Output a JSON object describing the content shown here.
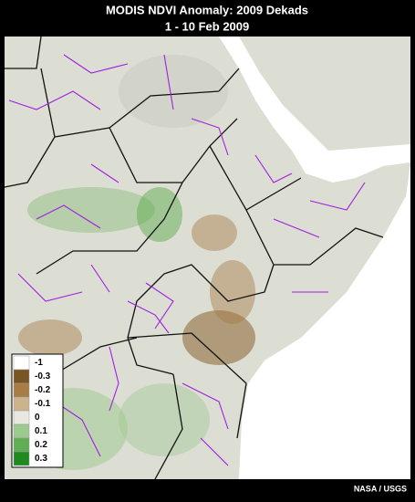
{
  "header": {
    "title": "MODIS NDVI Anomaly: 2009 Dekads",
    "subtitle": "1 - 10 Feb 2009"
  },
  "legend": {
    "items": [
      {
        "label": "-1",
        "color": "#ffffff"
      },
      {
        "label": "-0.3",
        "color": "#7a5524"
      },
      {
        "label": "-0.2",
        "color": "#a77c45"
      },
      {
        "label": "-0.1",
        "color": "#cdb38c"
      },
      {
        "label": "0",
        "color": "#e8e8e0"
      },
      {
        "label": "0.1",
        "color": "#9cc98e"
      },
      {
        "label": "0.2",
        "color": "#5fae52"
      },
      {
        "label": "0.3",
        "color": "#1f8a1f"
      }
    ]
  },
  "credit": "NASA / USGS"
}
